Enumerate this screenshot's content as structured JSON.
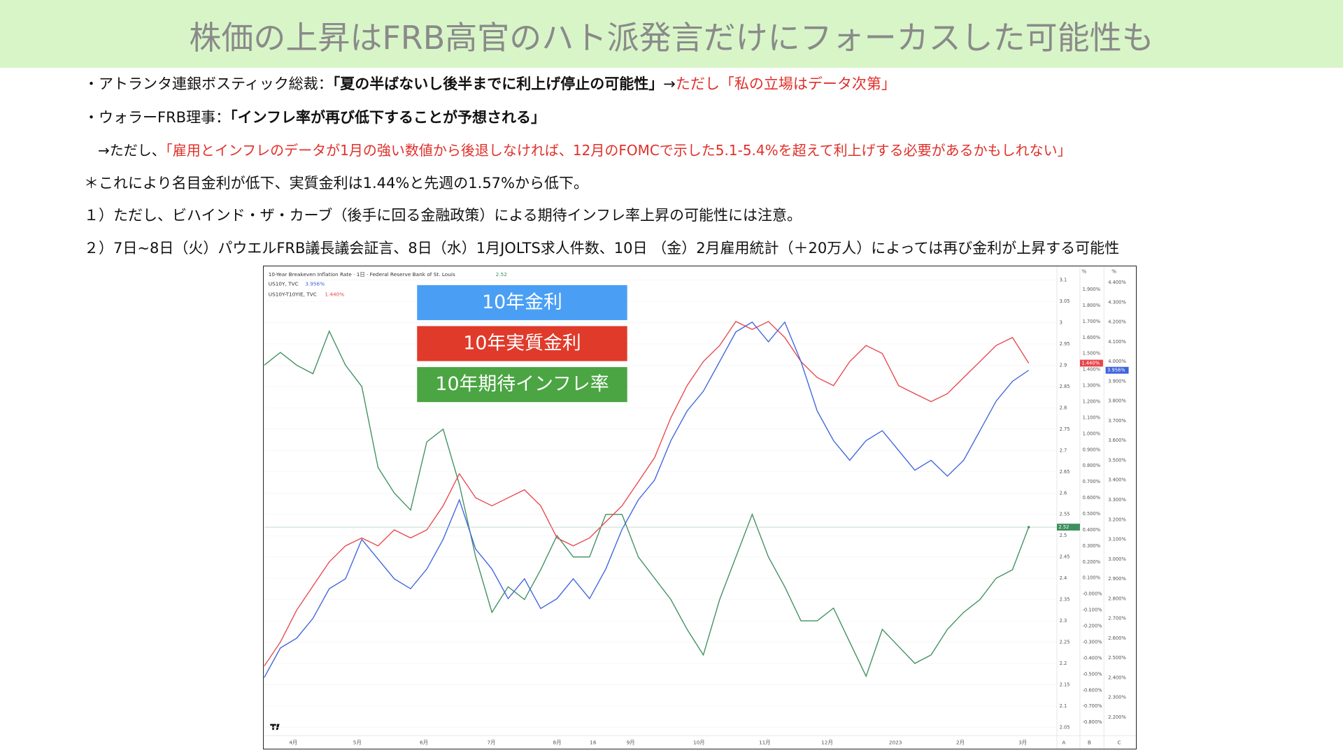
{
  "header": {
    "title": "株価の上昇はFRB高官のハト派発言だけにフォーカスした可能性も"
  },
  "lines": [
    [
      "・アトランタ連銀ボスティック総裁：",
      "「夏の半ばないし後半までに利上げ停止の可能性」",
      "→",
      "ただし「私の立場はデータ次第」"
    ],
    [
      "・ウォラーFRB理事：",
      "「インフレ率が再び低下することが予想される」"
    ],
    [
      "→ただし、",
      "「雇用とインフレのデータが1月の強い数値から後退しなければ、12月のFOMCで示した5.1-5.4%を超えて利上げする必要があるかもしれない」"
    ],
    [
      "＊これにより名目金利が低下、実質金利は1.44%と先週の1.57%から低下。"
    ],
    [
      "１）ただし、ビハインド・ザ・カーブ（後手に回る金融政策）による期待インフレ率上昇の可能性には注意。"
    ],
    [
      "２）7日~8日（火）パウエルFRB議長議会証言、8日（水）1月JOLTS求人件数、10日 （金）2月雇用統計（＋20万人）によっては再び金利が上昇する可能性"
    ]
  ],
  "chart_data": {
    "type": "line",
    "symbols": [
      {
        "name": "10-Year Breakeven Inflation Rate · 1日 · Federal Reserve Bank of St. Louis",
        "last": "2.52"
      },
      {
        "name": "US10Y, TVC",
        "last": "3.956%"
      },
      {
        "name": "US10Y-T10YIE, TVC",
        "last": "1.440%"
      }
    ],
    "axis_units": [
      "%",
      "%"
    ],
    "axis_names": [
      "A",
      "B",
      "C"
    ],
    "x_tick_labels": [
      "4月",
      "5月",
      "6月",
      "7月",
      "8月",
      "16",
      "9月",
      "10月",
      "11月",
      "12月",
      "2023",
      "2月",
      "3月"
    ],
    "grid": true,
    "series": [
      {
        "name": "10年金利",
        "color": "#3d63dd",
        "axis": "y3",
        "values": [
          2.4,
          2.55,
          2.6,
          2.7,
          2.85,
          2.9,
          3.1,
          3.0,
          2.9,
          2.85,
          2.95,
          3.1,
          3.3,
          3.05,
          2.95,
          2.8,
          2.9,
          2.75,
          2.8,
          2.9,
          2.8,
          2.95,
          3.15,
          3.3,
          3.4,
          3.6,
          3.75,
          3.85,
          4.0,
          4.15,
          4.2,
          4.1,
          4.2,
          4.0,
          3.75,
          3.6,
          3.5,
          3.6,
          3.65,
          3.55,
          3.45,
          3.5,
          3.42,
          3.5,
          3.65,
          3.8,
          3.9,
          3.956
        ]
      },
      {
        "name": "10年実質金利",
        "color": "#e8464b",
        "axis": "y2",
        "values": [
          -0.45,
          -0.3,
          -0.1,
          0.05,
          0.2,
          0.3,
          0.35,
          0.3,
          0.4,
          0.35,
          0.4,
          0.55,
          0.75,
          0.6,
          0.55,
          0.6,
          0.65,
          0.55,
          0.35,
          0.3,
          0.35,
          0.45,
          0.55,
          0.7,
          0.85,
          1.1,
          1.3,
          1.45,
          1.55,
          1.7,
          1.65,
          1.7,
          1.6,
          1.45,
          1.35,
          1.3,
          1.45,
          1.55,
          1.5,
          1.3,
          1.25,
          1.2,
          1.25,
          1.35,
          1.45,
          1.55,
          1.6,
          1.44
        ]
      },
      {
        "name": "10年期待インフレ率",
        "color": "#3d8f5e",
        "axis": "y",
        "values": [
          2.9,
          2.93,
          2.9,
          2.88,
          2.98,
          2.9,
          2.85,
          2.66,
          2.6,
          2.56,
          2.72,
          2.75,
          2.62,
          2.45,
          2.32,
          2.38,
          2.35,
          2.42,
          2.5,
          2.45,
          2.45,
          2.55,
          2.55,
          2.45,
          2.4,
          2.35,
          2.28,
          2.22,
          2.35,
          2.45,
          2.55,
          2.45,
          2.38,
          2.3,
          2.3,
          2.33,
          2.25,
          2.17,
          2.28,
          2.24,
          2.2,
          2.22,
          2.28,
          2.32,
          2.35,
          2.4,
          2.42,
          2.52
        ]
      }
    ],
    "ylim": [
      2.05,
      3.1
    ],
    "yticks": [
      2.05,
      2.1,
      2.15,
      2.2,
      2.25,
      2.3,
      2.35,
      2.4,
      2.45,
      2.5,
      2.55,
      2.6,
      2.65,
      2.7,
      2.75,
      2.8,
      2.85,
      2.9,
      2.95,
      3,
      3.05,
      3.1
    ],
    "y2lim": [
      -0.8,
      1.9
    ],
    "y2ticks": [
      {
        "value": -0.8,
        "label": "-0.800%"
      },
      {
        "value": -0.7,
        "label": "-0.700%"
      },
      {
        "value": -0.6,
        "label": "-0.600%"
      },
      {
        "value": -0.5,
        "label": "-0.500%"
      },
      {
        "value": -0.4,
        "label": "-0.400%"
      },
      {
        "value": -0.3,
        "label": "-0.300%"
      },
      {
        "value": -0.2,
        "label": "-0.200%"
      },
      {
        "value": -0.1,
        "label": "-0.100%"
      },
      {
        "value": 0,
        "label": "-0.000%"
      },
      {
        "value": 0.1,
        "label": "0.100%"
      },
      {
        "value": 0.2,
        "label": "0.200%"
      },
      {
        "value": 0.3,
        "label": "0.300%"
      },
      {
        "value": 0.4,
        "label": "0.400%"
      },
      {
        "value": 0.5,
        "label": "0.500%"
      },
      {
        "value": 0.6,
        "label": "0.600%"
      },
      {
        "value": 0.7,
        "label": "0.700%"
      },
      {
        "value": 0.8,
        "label": "0.800%"
      },
      {
        "value": 0.9,
        "label": "0.900%"
      },
      {
        "value": 1.0,
        "label": "1.000%"
      },
      {
        "value": 1.1,
        "label": "1.100%"
      },
      {
        "value": 1.2,
        "label": "1.200%"
      },
      {
        "value": 1.3,
        "label": "1.300%"
      },
      {
        "value": 1.4,
        "label": "1.400%"
      },
      {
        "value": 1.5,
        "label": "1.500%"
      },
      {
        "value": 1.6,
        "label": "1.600%"
      },
      {
        "value": 1.7,
        "label": "1.700%"
      },
      {
        "value": 1.8,
        "label": "1.800%"
      },
      {
        "value": 1.9,
        "label": "1.900%"
      }
    ],
    "y3lim": [
      2.2,
      4.4
    ],
    "y3ticks": [
      {
        "value": 2.2,
        "label": "2.200%"
      },
      {
        "value": 2.3,
        "label": "2.300%"
      },
      {
        "value": 2.4,
        "label": "2.400%"
      },
      {
        "value": 2.5,
        "label": "2.500%"
      },
      {
        "value": 2.6,
        "label": "2.600%"
      },
      {
        "value": 2.7,
        "label": "2.700%"
      },
      {
        "value": 2.8,
        "label": "2.800%"
      },
      {
        "value": 2.9,
        "label": "2.900%"
      },
      {
        "value": 3.0,
        "label": "3.000%"
      },
      {
        "value": 3.1,
        "label": "3.100%"
      },
      {
        "value": 3.2,
        "label": "3.200%"
      },
      {
        "value": 3.3,
        "label": "3.300%"
      },
      {
        "value": 3.4,
        "label": "3.400%"
      },
      {
        "value": 3.5,
        "label": "3.500%"
      },
      {
        "value": 3.6,
        "label": "3.600%"
      },
      {
        "value": 3.7,
        "label": "3.700%"
      },
      {
        "value": 3.8,
        "label": "3.800%"
      },
      {
        "value": 3.9,
        "label": "3.900%"
      },
      {
        "value": 4.0,
        "label": "4.000%"
      },
      {
        "value": 4.1,
        "label": "4.100%"
      },
      {
        "value": 4.2,
        "label": "4.200%"
      },
      {
        "value": 4.3,
        "label": "4.300%"
      },
      {
        "value": 4.4,
        "label": "4.400%"
      }
    ]
  }
}
